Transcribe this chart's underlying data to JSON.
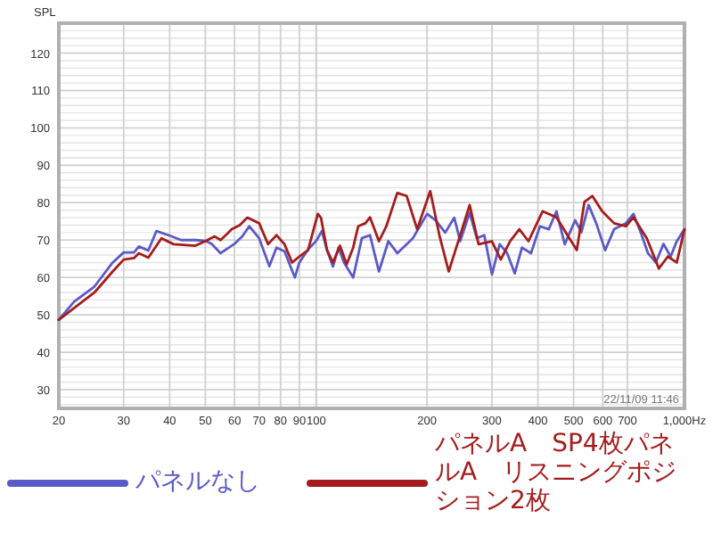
{
  "chart_data": {
    "type": "line",
    "ylabel": "SPL",
    "log": "x",
    "grid": true,
    "legend": "bottom",
    "line_style": "solid",
    "marker": "none",
    "xlim": [
      20,
      1000
    ],
    "ylim": [
      25,
      128
    ],
    "xticks": [
      20,
      30,
      40,
      50,
      60,
      70,
      80,
      90,
      100,
      200,
      300,
      400,
      500,
      600,
      700,
      {
        "value": 1000,
        "label": "1,000Hz"
      }
    ],
    "yticks": [
      30,
      40,
      50,
      60,
      70,
      80,
      90,
      100,
      110,
      120
    ],
    "annotations": [
      "22/11/09 11:46"
    ],
    "series": [
      {
        "name": "パネルなし",
        "color": "#5a5ac8",
        "x": [
          20,
          22,
          25,
          28,
          30,
          32,
          33,
          35,
          36.8,
          40,
          43,
          47,
          50,
          52,
          55,
          60,
          63,
          65.8,
          70,
          74.6,
          78,
          82,
          87.5,
          90,
          95,
          100,
          103.6,
          107,
          111,
          115,
          119,
          126,
          133,
          140,
          148,
          157,
          166,
          183,
          200,
          211,
          224,
          237,
          246,
          261,
          273,
          286,
          300,
          315,
          330,
          346,
          362,
          383,
          405,
          428,
          449,
          473,
          505,
          525,
          549,
          576,
          609,
          644,
          693,
          727,
          761,
          796,
          836,
          877,
          917,
          953,
          1000
        ],
        "values": [
          48.7,
          53.5,
          57.6,
          64,
          66.7,
          66.7,
          68.3,
          67.2,
          72.4,
          71.2,
          70,
          70,
          69.8,
          69,
          66.5,
          69,
          71,
          73.7,
          70.5,
          63,
          68,
          67,
          60,
          64,
          67.5,
          69.8,
          72.4,
          67.3,
          62.9,
          68,
          64,
          60,
          70.5,
          71.3,
          61.6,
          69.7,
          66.5,
          70.5,
          77,
          75.3,
          72,
          76,
          69.7,
          77.3,
          70.5,
          71.3,
          60.8,
          68.9,
          66.5,
          61.1,
          68,
          66.5,
          73.7,
          72.9,
          77.7,
          68.9,
          75.3,
          72.1,
          79.4,
          74.5,
          67.3,
          72.9,
          74.5,
          77,
          72,
          66.5,
          64,
          69,
          65.6,
          69.7,
          72.9
        ]
      },
      {
        "name": "パネルA　SP4枚パネルA　リスニングポジション2枚",
        "color": "#a51c1c",
        "x": [
          20,
          25,
          28,
          30,
          32,
          33,
          35,
          38,
          41,
          47,
          50,
          53,
          55,
          59,
          62,
          65,
          70,
          74,
          78,
          82,
          86,
          90,
          95,
          101,
          103,
          107,
          111,
          116,
          121,
          126,
          130,
          136,
          140,
          148,
          155,
          166,
          176,
          188,
          204,
          216,
          229,
          246,
          261,
          276,
          300,
          317,
          336,
          356,
          377,
          412,
          449,
          487,
          510,
          535,
          562,
          598,
          644,
          693,
          727,
          790,
          852,
          901,
          953,
          1000
        ],
        "values": [
          48.7,
          56,
          61.6,
          64.8,
          65.2,
          66.5,
          65.3,
          70.5,
          68.9,
          68.5,
          69.7,
          71,
          70,
          72.9,
          74,
          76,
          74.5,
          68.9,
          71.3,
          68.9,
          64,
          65.6,
          67.3,
          77,
          76,
          67.3,
          64,
          68.5,
          63.5,
          68,
          73.7,
          74.5,
          76.1,
          69.7,
          73.7,
          82.6,
          81.8,
          72.9,
          83.1,
          71.3,
          61.6,
          71.3,
          79.4,
          68.9,
          69.7,
          64.8,
          69.7,
          72.9,
          69.7,
          77.7,
          76.1,
          70.5,
          67.3,
          80.2,
          81.8,
          77.7,
          74.5,
          73.7,
          76.1,
          70.5,
          62.4,
          65.6,
          64,
          72.9
        ]
      }
    ]
  }
}
